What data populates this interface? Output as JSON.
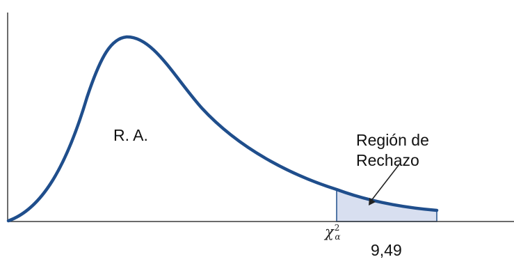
{
  "labels": {
    "acceptance_region": "R. A.",
    "rejection_region_line1": "Región de",
    "rejection_region_line2": "Rechazo",
    "critical_value": "9,49",
    "critical_symbol": "χ",
    "critical_symbol_sup": "2",
    "critical_symbol_sub": "α"
  },
  "colors": {
    "curve": "#1f4e8c",
    "rejection_fill": "#d8dff0",
    "axis": "#3a3a3a",
    "arrow": "#222222"
  }
}
